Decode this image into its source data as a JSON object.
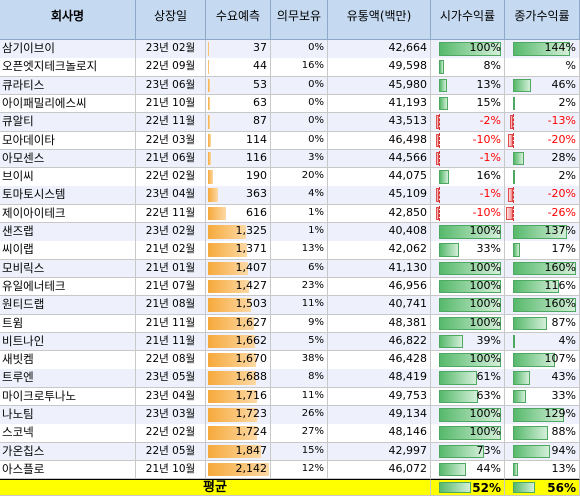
{
  "headers": [
    "회사명",
    "상장일",
    "수요예측",
    "의무보유",
    "유통액(백만)",
    "시가수익률",
    "종가수익률"
  ],
  "rows": [
    {
      "name": "삼기이브이",
      "date": "23년 02월",
      "demand": "37",
      "demand_v": 37,
      "lock": "0%",
      "float": "42,664",
      "open": "100%",
      "open_v": 100,
      "close": "144%",
      "close_v": 144
    },
    {
      "name": "오픈엣지테크놀로지",
      "date": "22년 09월",
      "demand": "44",
      "demand_v": 44,
      "lock": "16%",
      "float": "49,598",
      "open": "8%",
      "open_v": 8,
      "close": "%",
      "close_v": 0
    },
    {
      "name": "큐라티스",
      "date": "23년 06월",
      "demand": "53",
      "demand_v": 53,
      "lock": "0%",
      "float": "45,980",
      "open": "13%",
      "open_v": 13,
      "close": "46%",
      "close_v": 46
    },
    {
      "name": "아이패밀리에스씨",
      "date": "21년 10월",
      "demand": "63",
      "demand_v": 63,
      "lock": "0%",
      "float": "41,193",
      "open": "15%",
      "open_v": 15,
      "close": "2%",
      "close_v": 2
    },
    {
      "name": "큐알티",
      "date": "22년 11월",
      "demand": "87",
      "demand_v": 87,
      "lock": "0%",
      "float": "43,513",
      "open": "-2%",
      "open_v": -2,
      "close": "-13%",
      "close_v": -13
    },
    {
      "name": "모아데이타",
      "date": "22년 03월",
      "demand": "114",
      "demand_v": 114,
      "lock": "0%",
      "float": "46,498",
      "open": "-10%",
      "open_v": -10,
      "close": "-20%",
      "close_v": -20
    },
    {
      "name": "아모센스",
      "date": "21년 06월",
      "demand": "116",
      "demand_v": 116,
      "lock": "3%",
      "float": "44,566",
      "open": "-1%",
      "open_v": -1,
      "close": "28%",
      "close_v": 28
    },
    {
      "name": "브이씨",
      "date": "22년 02월",
      "demand": "190",
      "demand_v": 190,
      "lock": "20%",
      "float": "44,075",
      "open": "16%",
      "open_v": 16,
      "close": "2%",
      "close_v": 2
    },
    {
      "name": "토마토시스템",
      "date": "23년 04월",
      "demand": "363",
      "demand_v": 363,
      "lock": "4%",
      "float": "45,109",
      "open": "-1%",
      "open_v": -1,
      "close": "-20%",
      "close_v": -20
    },
    {
      "name": "제이아이테크",
      "date": "22년 11월",
      "demand": "616",
      "demand_v": 616,
      "lock": "1%",
      "float": "42,850",
      "open": "-10%",
      "open_v": -10,
      "close": "-26%",
      "close_v": -26
    },
    {
      "name": "샌즈랩",
      "date": "23년 02월",
      "demand": "1,325",
      "demand_v": 1325,
      "lock": "1%",
      "float": "40,408",
      "open": "100%",
      "open_v": 100,
      "close": "137%",
      "close_v": 137
    },
    {
      "name": "씨이랩",
      "date": "21년 02월",
      "demand": "1,371",
      "demand_v": 1371,
      "lock": "13%",
      "float": "42,062",
      "open": "33%",
      "open_v": 33,
      "close": "17%",
      "close_v": 17
    },
    {
      "name": "모비릭스",
      "date": "21년 01월",
      "demand": "1,407",
      "demand_v": 1407,
      "lock": "6%",
      "float": "41,130",
      "open": "100%",
      "open_v": 100,
      "close": "160%",
      "close_v": 160
    },
    {
      "name": "유일에너테크",
      "date": "21년 07월",
      "demand": "1,427",
      "demand_v": 1427,
      "lock": "23%",
      "float": "46,956",
      "open": "100%",
      "open_v": 100,
      "close": "116%",
      "close_v": 116
    },
    {
      "name": "원티드랩",
      "date": "21년 08월",
      "demand": "1,503",
      "demand_v": 1503,
      "lock": "11%",
      "float": "40,741",
      "open": "100%",
      "open_v": 100,
      "close": "160%",
      "close_v": 160
    },
    {
      "name": "트윔",
      "date": "21년 11월",
      "demand": "1,627",
      "demand_v": 1627,
      "lock": "9%",
      "float": "48,381",
      "open": "100%",
      "open_v": 100,
      "close": "87%",
      "close_v": 87
    },
    {
      "name": "비트나인",
      "date": "21년 11월",
      "demand": "1,662",
      "demand_v": 1662,
      "lock": "5%",
      "float": "46,822",
      "open": "39%",
      "open_v": 39,
      "close": "4%",
      "close_v": 4
    },
    {
      "name": "새빗켐",
      "date": "22년 08월",
      "demand": "1,670",
      "demand_v": 1670,
      "lock": "38%",
      "float": "46,428",
      "open": "100%",
      "open_v": 100,
      "close": "107%",
      "close_v": 107
    },
    {
      "name": "트루엔",
      "date": "23년 05월",
      "demand": "1,688",
      "demand_v": 1688,
      "lock": "8%",
      "float": "48,419",
      "open": "61%",
      "open_v": 61,
      "close": "43%",
      "close_v": 43
    },
    {
      "name": "마이크로투나노",
      "date": "23년 04월",
      "demand": "1,716",
      "demand_v": 1716,
      "lock": "11%",
      "float": "49,753",
      "open": "63%",
      "open_v": 63,
      "close": "33%",
      "close_v": 33
    },
    {
      "name": "나노팀",
      "date": "23년 03월",
      "demand": "1,723",
      "demand_v": 1723,
      "lock": "26%",
      "float": "49,134",
      "open": "100%",
      "open_v": 100,
      "close": "129%",
      "close_v": 129
    },
    {
      "name": "스코넥",
      "date": "22년 02월",
      "demand": "1,724",
      "demand_v": 1724,
      "lock": "27%",
      "float": "48,146",
      "open": "100%",
      "open_v": 100,
      "close": "88%",
      "close_v": 88
    },
    {
      "name": "가온칩스",
      "date": "22년 05월",
      "demand": "1,847",
      "demand_v": 1847,
      "lock": "15%",
      "float": "42,997",
      "open": "73%",
      "open_v": 73,
      "close": "94%",
      "close_v": 94
    },
    {
      "name": "아스플로",
      "date": "21년 10월",
      "demand": "2,142",
      "demand_v": 2142,
      "lock": "12%",
      "float": "46,072",
      "open": "44%",
      "open_v": 44,
      "close": "13%",
      "close_v": 13
    }
  ],
  "average": {
    "label": "평균",
    "open": "52%",
    "open_v": 52,
    "close": "56%",
    "close_v": 56
  },
  "colors": {
    "header": "#c5d9f1",
    "demand_bar": "#f6a93b",
    "positive_bar": "#56b96b",
    "negative_bar": "#f58b8b",
    "negative_text": "#ff0000",
    "average_row": "#ffff00"
  }
}
